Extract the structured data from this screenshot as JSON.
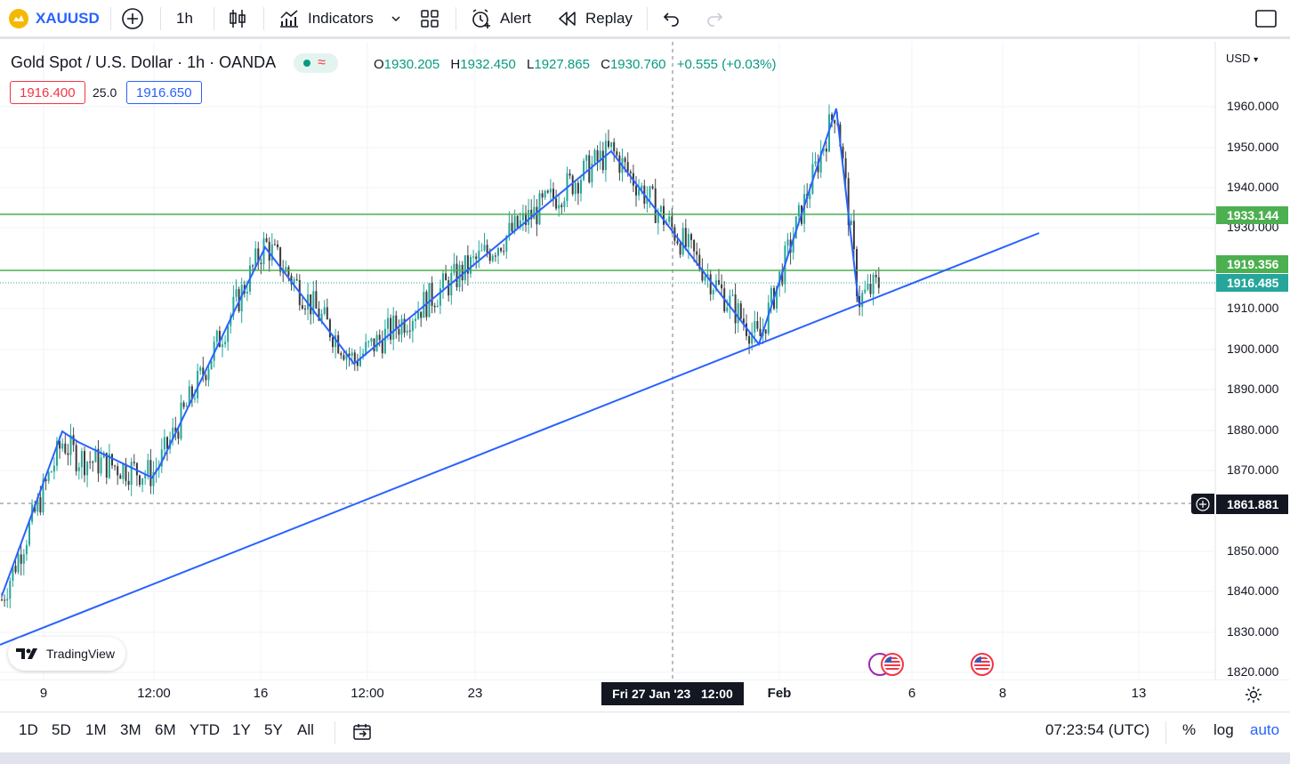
{
  "toolbar": {
    "symbol": "XAUUSD",
    "interval": "1h",
    "indicators_label": "Indicators",
    "alert_label": "Alert",
    "replay_label": "Replay"
  },
  "legend": {
    "title": "Gold Spot / U.S. Dollar · 1h · OANDA",
    "open_key": "O",
    "open": "1930.205",
    "high_key": "H",
    "high": "1932.450",
    "low_key": "L",
    "low": "1927.865",
    "close_key": "C",
    "close": "1930.760",
    "change": "+0.555 (+0.03%)",
    "sell_price": "1916.400",
    "spread": "25.0",
    "buy_price": "1916.650"
  },
  "price_axis": {
    "currency": "USD",
    "ticks": [
      "1960.000",
      "1950.000",
      "1940.000",
      "1930.000",
      "1910.000",
      "1900.000",
      "1890.000",
      "1880.000",
      "1870.000",
      "1850.000",
      "1840.000",
      "1830.000",
      "1820.000"
    ],
    "label_resistance": "1933.144",
    "label_support": "1919.356",
    "label_last": "1916.485",
    "label_crosshair": "1861.881"
  },
  "time_axis": {
    "ticks": [
      "9",
      "12:00",
      "16",
      "12:00",
      "23",
      "Feb",
      "6",
      "8",
      "13"
    ],
    "crosshair_label": "Fri 27 Jan '23   12:00"
  },
  "watermark": "TradingView",
  "ranges": [
    "1D",
    "5D",
    "1M",
    "3M",
    "6M",
    "YTD",
    "1Y",
    "5Y",
    "All"
  ],
  "status": {
    "clock": "07:23:54 (UTC)",
    "percent": "%",
    "log": "log",
    "auto": "auto"
  },
  "colors": {
    "up": "#089981",
    "down": "#f23645",
    "candle": "#26a69a",
    "drawing": "#2962ff",
    "level": "#4caf50",
    "last": "#26a69a"
  },
  "chart_data": {
    "type": "candlestick",
    "y_range": [
      1816,
      1970
    ],
    "horizontal_levels": [
      1933.144,
      1919.356
    ],
    "last_price": 1916.485,
    "crosshair_price": 1861.881,
    "zigzag": [
      1838,
      1877,
      1873,
      1869,
      1926,
      1897,
      1949,
      1902,
      1960,
      1912
    ],
    "trendline": [
      1827,
      1929
    ]
  }
}
